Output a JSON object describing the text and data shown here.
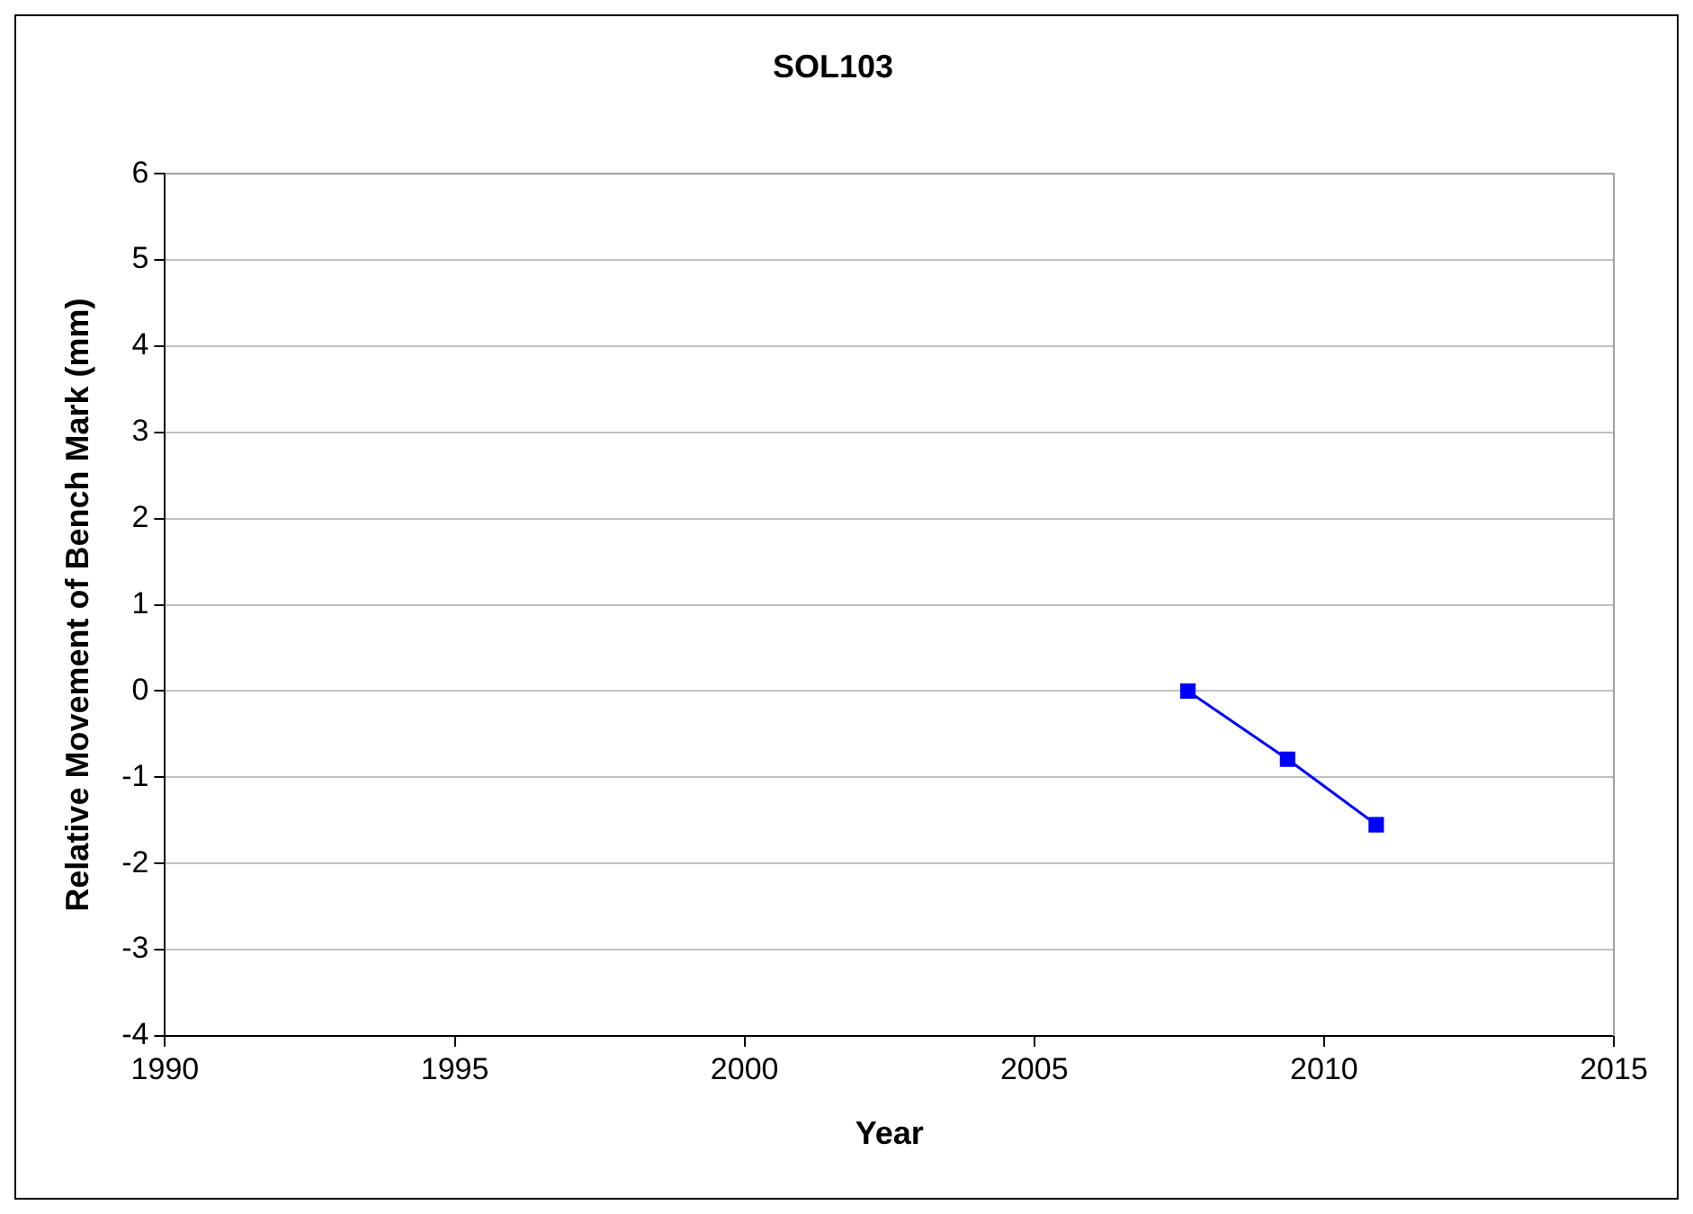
{
  "chart_data": {
    "type": "line",
    "title": "SOL103",
    "xlabel": "Year",
    "ylabel": "Relative Movement of Bench Mark (mm)",
    "x": [
      2007.65,
      2009.37,
      2010.9
    ],
    "series": [
      {
        "color": "#0000ff",
        "values": [
          0,
          -0.79,
          -1.55
        ]
      }
    ],
    "xlim": [
      1990,
      2015
    ],
    "xticks": [
      1990,
      1995,
      2000,
      2005,
      2010,
      2015
    ],
    "ylim": [
      -4,
      6
    ],
    "yticks": [
      -4,
      -3,
      -2,
      -1,
      0,
      1,
      2,
      3,
      4,
      5,
      6
    ],
    "grid": "y",
    "legend": false,
    "marker": "square",
    "line_style": "solid"
  }
}
